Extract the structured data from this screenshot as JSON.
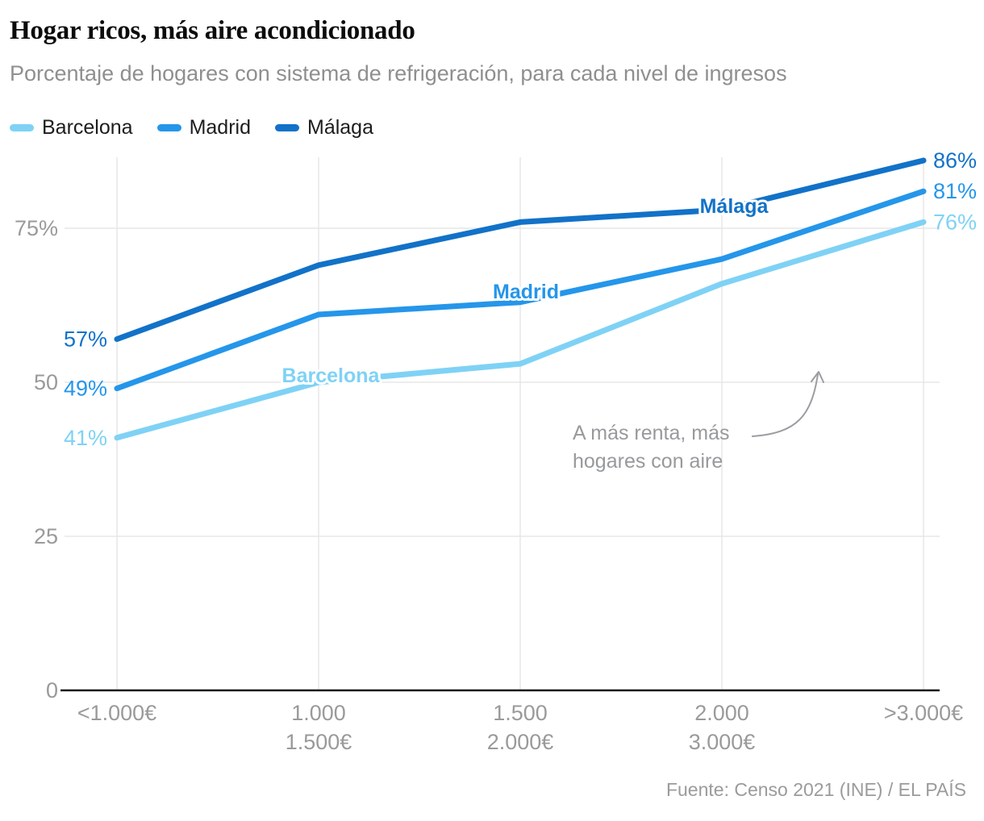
{
  "header": {
    "title": "Hogar ricos, más aire acondicionado",
    "subtitle": "Porcentaje de hogares con sistema de refrigeración, para cada nivel de ingresos"
  },
  "annotation": {
    "lines": [
      "A más renta, más",
      "hogares con aire"
    ]
  },
  "footer": {
    "source": "Fuente: Censo 2021 (INE) / EL PAÍS"
  },
  "chart_data": {
    "type": "line",
    "title": "Hogar ricos, más aire acondicionado",
    "subtitle": "Porcentaje de hogares con sistema de refrigeración, para cada nivel de ingresos",
    "xlabel": "",
    "ylabel": "",
    "categories": [
      "<1.000€",
      "1.000-1.500€",
      "1.500-2.000€",
      "2.000-3.000€",
      ">3.000€"
    ],
    "x_tick_lines": [
      [
        "<1.000€"
      ],
      [
        "1.000",
        "1.500€"
      ],
      [
        "1.500",
        "2.000€"
      ],
      [
        "2.000",
        "3.000€"
      ],
      [
        ">3.000€"
      ]
    ],
    "series": [
      {
        "name": "Barcelona",
        "color": "#7fd2f5",
        "values": [
          41,
          50,
          53,
          66,
          76
        ]
      },
      {
        "name": "Madrid",
        "color": "#2596ea",
        "values": [
          49,
          61,
          63,
          70,
          81
        ]
      },
      {
        "name": "Málaga",
        "color": "#1272c8",
        "values": [
          57,
          69,
          76,
          78,
          86
        ]
      }
    ],
    "yticks": {
      "values": [
        0,
        25,
        50,
        75
      ],
      "labels": [
        "0",
        "25",
        "50",
        "75%"
      ]
    },
    "ylim": [
      0,
      90
    ],
    "grid": true,
    "legend_position": "top-left",
    "value_label_suffix": "%"
  }
}
